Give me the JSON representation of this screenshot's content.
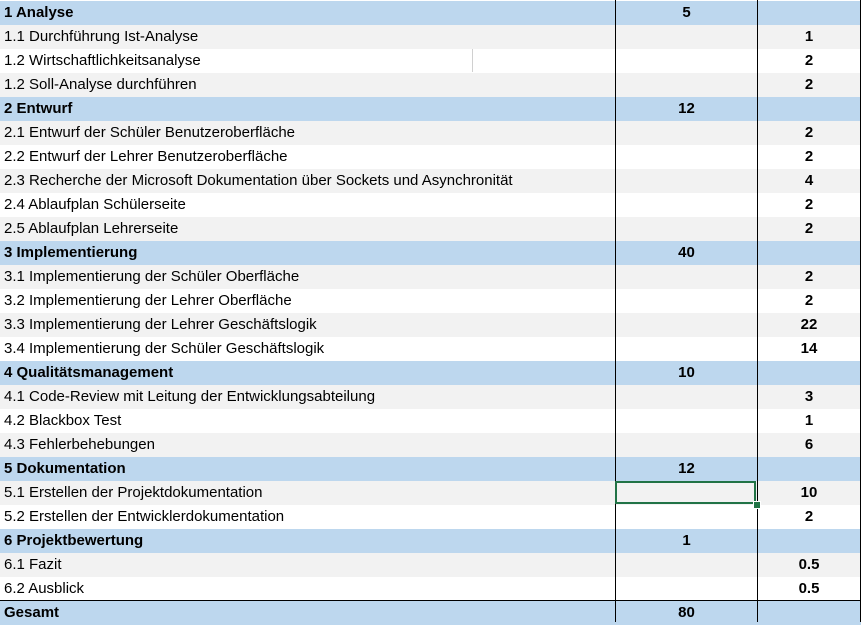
{
  "sheet": {
    "rows": [
      {
        "kind": "header",
        "label": "1 Analyse",
        "total": "5",
        "hours": ""
      },
      {
        "kind": "item",
        "label": "1.1 Durchführung Ist-Analyse",
        "total": "",
        "hours": "1"
      },
      {
        "kind": "item",
        "label": "1.2 Wirtschaftlichkeitsanalyse",
        "total": "",
        "hours": "2"
      },
      {
        "kind": "item",
        "label": "1.2 Soll-Analyse durchführen",
        "total": "",
        "hours": "2"
      },
      {
        "kind": "header",
        "label": "2 Entwurf",
        "total": "12",
        "hours": ""
      },
      {
        "kind": "item",
        "label": "2.1 Entwurf der Schüler Benutzeroberfläche",
        "total": "",
        "hours": "2"
      },
      {
        "kind": "item",
        "label": "2.2 Entwurf der Lehrer Benutzeroberfläche",
        "total": "",
        "hours": "2"
      },
      {
        "kind": "item",
        "label": "2.3 Recherche der Microsoft Dokumentation über Sockets und Asynchronität",
        "total": "",
        "hours": "4"
      },
      {
        "kind": "item",
        "label": "2.4 Ablaufplan Schülerseite",
        "total": "",
        "hours": "2"
      },
      {
        "kind": "item",
        "label": "2.5 Ablaufplan Lehrerseite",
        "total": "",
        "hours": "2"
      },
      {
        "kind": "header",
        "label": "3 Implementierung",
        "total": "40",
        "hours": ""
      },
      {
        "kind": "item",
        "label": "3.1 Implementierung der Schüler Oberfläche",
        "total": "",
        "hours": "2"
      },
      {
        "kind": "item",
        "label": "3.2 Implementierung der Lehrer Oberfläche",
        "total": "",
        "hours": "2"
      },
      {
        "kind": "item",
        "label": "3.3 Implementierung der Lehrer Geschäftslogik",
        "total": "",
        "hours": "22"
      },
      {
        "kind": "item",
        "label": "3.4 Implementierung der Schüler Geschäftslogik",
        "total": "",
        "hours": "14"
      },
      {
        "kind": "header",
        "label": "4 Qualitätsmanagement",
        "total": "10",
        "hours": ""
      },
      {
        "kind": "item",
        "label": "4.1 Code-Review mit Leitung der Entwicklungsabteilung",
        "total": "",
        "hours": "3"
      },
      {
        "kind": "item",
        "label": "4.2 Blackbox Test",
        "total": "",
        "hours": "1"
      },
      {
        "kind": "item",
        "label": "4.3 Fehlerbehebungen",
        "total": "",
        "hours": "6"
      },
      {
        "kind": "header",
        "label": "5 Dokumentation",
        "total": "12",
        "hours": ""
      },
      {
        "kind": "item",
        "label": "5.1 Erstellen der Projektdokumentation",
        "total": "",
        "hours": "10"
      },
      {
        "kind": "item",
        "label": "5.2 Erstellen der Entwicklerdokumentation",
        "total": "",
        "hours": "2"
      },
      {
        "kind": "header",
        "label": "6 Projektbewertung",
        "total": "1",
        "hours": ""
      },
      {
        "kind": "item",
        "label": "6.1 Fazit",
        "total": "",
        "hours": "0.5"
      },
      {
        "kind": "item",
        "label": "6.2 Ausblick",
        "total": "",
        "hours": "0.5"
      },
      {
        "kind": "header",
        "label": "Gesamt",
        "total": "80",
        "hours": ""
      }
    ]
  }
}
